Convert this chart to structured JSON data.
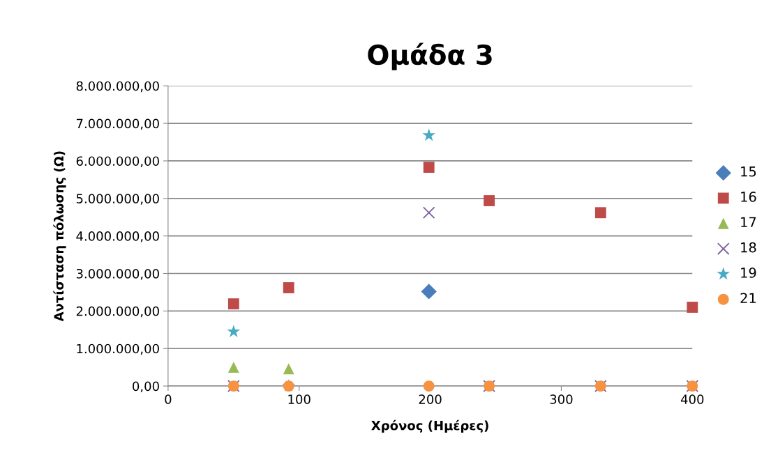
{
  "chart_data": {
    "type": "scatter",
    "title": "Ομάδα 3",
    "xlabel": "Χρόνος (Ημέρες)",
    "ylabel": "Αντίσταση πόλωσης (Ω)",
    "xlim": [
      0,
      400
    ],
    "xticks": [
      0,
      100,
      200,
      300,
      400
    ],
    "ylim": [
      0,
      8000000
    ],
    "yticks": [
      {
        "value": 0,
        "label": "0,00"
      },
      {
        "value": 1000000,
        "label": "1.000.000,00"
      },
      {
        "value": 2000000,
        "label": "2.000.000,00"
      },
      {
        "value": 3000000,
        "label": "3.000.000,00"
      },
      {
        "value": 4000000,
        "label": "4.000.000,00"
      },
      {
        "value": 5000000,
        "label": "5.000.000,00"
      },
      {
        "value": 6000000,
        "label": "6.000.000,00"
      },
      {
        "value": 7000000,
        "label": "7.000.000,00"
      },
      {
        "value": 8000000,
        "label": "8.000.000,00"
      }
    ],
    "grid": "y",
    "legend": "right",
    "series": [
      {
        "name": "15",
        "color": "#4a7ebb",
        "marker": "diamond",
        "x": [
          199
        ],
        "values": [
          2520000
        ]
      },
      {
        "name": "16",
        "color": "#be4b48",
        "marker": "square",
        "x": [
          50,
          92,
          199,
          245,
          330,
          400
        ],
        "values": [
          2190000,
          2620000,
          5830000,
          4940000,
          4620000,
          2100000
        ]
      },
      {
        "name": "17",
        "color": "#98b954",
        "marker": "triangle",
        "x": [
          50,
          92
        ],
        "values": [
          500000,
          460000
        ]
      },
      {
        "name": "18",
        "color": "#7d60a0",
        "marker": "cross",
        "x": [
          50,
          199,
          245,
          330,
          400
        ],
        "values": [
          0,
          4620000,
          0,
          0,
          0
        ]
      },
      {
        "name": "19",
        "color": "#46aac5",
        "marker": "star",
        "x": [
          50,
          92,
          199
        ],
        "values": [
          1450000,
          0,
          6680000
        ]
      },
      {
        "name": "21",
        "color": "#f69240",
        "marker": "circle",
        "x": [
          50,
          92,
          199,
          245,
          330,
          400
        ],
        "values": [
          0,
          0,
          0,
          0,
          0,
          0
        ]
      }
    ]
  }
}
